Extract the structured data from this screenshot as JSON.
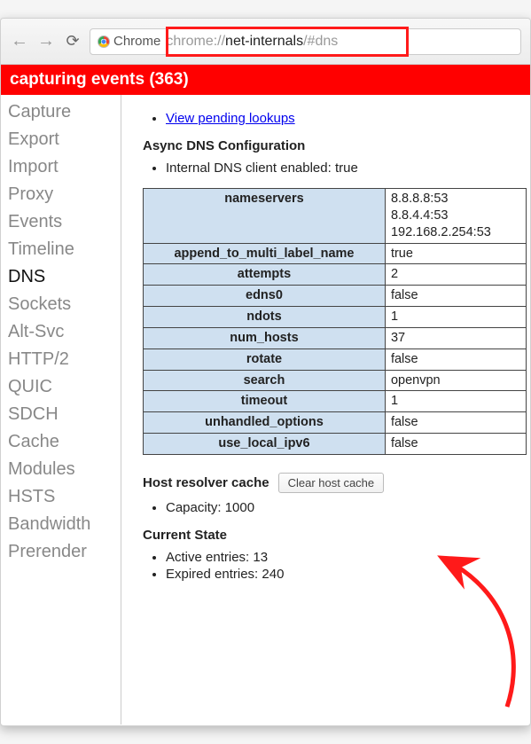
{
  "toolbar": {
    "chrome_label": "Chrome",
    "url_prefix": "chrome://",
    "url_bold": "net-internals",
    "url_suffix": "/#dns",
    "highlight_border_color": "#ff1a1a"
  },
  "banner": {
    "text": "capturing events (363)",
    "background_color": "#ff0000",
    "text_color": "#ffffff"
  },
  "sidebar": {
    "items": [
      {
        "label": "Capture",
        "active": false
      },
      {
        "label": "Export",
        "active": false
      },
      {
        "label": "Import",
        "active": false
      },
      {
        "label": "Proxy",
        "active": false
      },
      {
        "label": "Events",
        "active": false
      },
      {
        "label": "Timeline",
        "active": false
      },
      {
        "label": "DNS",
        "active": true
      },
      {
        "label": "Sockets",
        "active": false
      },
      {
        "label": "Alt-Svc",
        "active": false
      },
      {
        "label": "HTTP/2",
        "active": false
      },
      {
        "label": "QUIC",
        "active": false
      },
      {
        "label": "SDCH",
        "active": false
      },
      {
        "label": "Cache",
        "active": false
      },
      {
        "label": "Modules",
        "active": false
      },
      {
        "label": "HSTS",
        "active": false
      },
      {
        "label": "Bandwidth",
        "active": false
      },
      {
        "label": "Prerender",
        "active": false
      }
    ]
  },
  "main": {
    "pending_link": "View pending lookups",
    "async_header": "Async DNS Configuration",
    "client_enabled_label": "Internal DNS client enabled: true",
    "table_header_bg": "#cfe0f0",
    "config": {
      "nameservers": {
        "label": "nameservers",
        "values": [
          "8.8.8.8:53",
          "8.8.4.4:53",
          "192.168.2.254:53"
        ]
      },
      "rows": [
        {
          "key": "append_to_multi_label_name",
          "value": "true"
        },
        {
          "key": "attempts",
          "value": "2"
        },
        {
          "key": "edns0",
          "value": "false"
        },
        {
          "key": "ndots",
          "value": "1"
        },
        {
          "key": "num_hosts",
          "value": "37"
        },
        {
          "key": "rotate",
          "value": "false"
        },
        {
          "key": "search",
          "value": "openvpn"
        },
        {
          "key": "timeout",
          "value": "1"
        },
        {
          "key": "unhandled_options",
          "value": "false"
        },
        {
          "key": "use_local_ipv6",
          "value": "false"
        }
      ]
    },
    "resolver_header": "Host resolver cache",
    "clear_button": "Clear host cache",
    "capacity_label": "Capacity: 1000",
    "current_state_header": "Current State",
    "active_entries": "Active entries: 13",
    "expired_entries": "Expired entries: 240"
  },
  "annotation": {
    "arrow_color": "#ff1a1a"
  }
}
